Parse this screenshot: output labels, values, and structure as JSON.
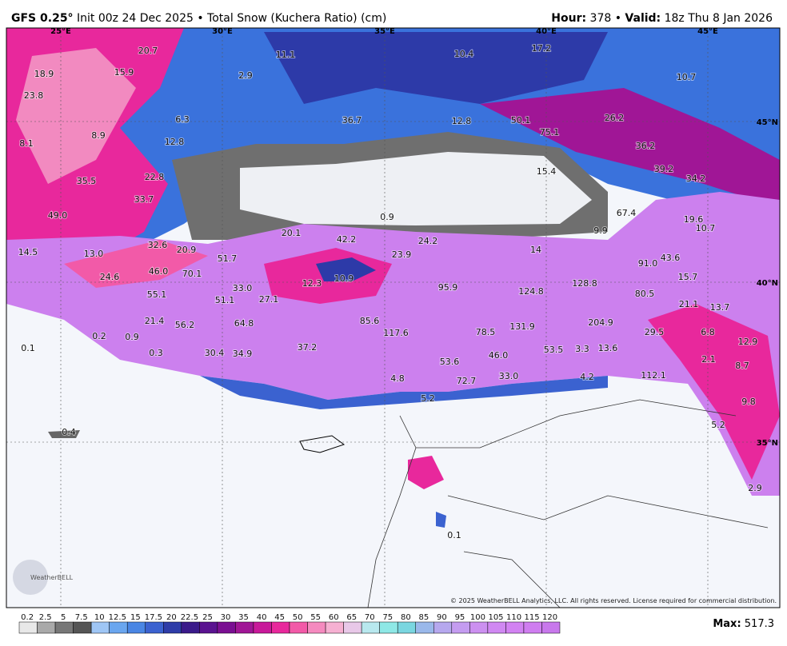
{
  "header": {
    "model": "GFS 0.25°",
    "description": "Init 00z 24 Dec 2025 • Total Snow (Kuchera Ratio) (cm)",
    "hour_label": "Hour:",
    "hour": "378 •",
    "valid_label": "Valid:",
    "valid": "18z Thu 8 Jan 2026"
  },
  "map": {
    "lon_labels": [
      "25°E",
      "30°E",
      "35°E",
      "40°E",
      "45°E"
    ],
    "lat_labels": [
      "45°N",
      "40°N",
      "35°N"
    ],
    "point_labels": [
      "20.7",
      "18.9",
      "15.9",
      "23.8",
      "11.1",
      "2.9",
      "10.4",
      "17.2",
      "10.7",
      "6.3",
      "36.7",
      "12.8",
      "50.1",
      "26.2",
      "8.1",
      "8.9",
      "12.8",
      "75.1",
      "36.2",
      "39.2",
      "34.2",
      "22.8",
      "35.5",
      "33.7",
      "15.4",
      "49.0",
      "0.9",
      "67.4",
      "19.6",
      "10.7",
      "20.1",
      "42.2",
      "24.2",
      "9.9",
      "32.6",
      "20.9",
      "14.5",
      "13.0",
      "51.7",
      "23.9",
      "14",
      "91.0",
      "43.6",
      "46.0",
      "70.1",
      "24.6",
      "10.9",
      "12.3",
      "15.7",
      "33.0",
      "55.1",
      "95.9",
      "124.8",
      "128.8",
      "80.5",
      "51.1",
      "27.1",
      "21.1",
      "13.7",
      "21.4",
      "56.2",
      "64.8",
      "85.6",
      "131.9",
      "204.9",
      "0.2",
      "0.9",
      "0.1",
      "117.6",
      "78.5",
      "29.5",
      "6.8",
      "12.9",
      "0.3",
      "30.4",
      "34.9",
      "37.2",
      "46.0",
      "53.5",
      "3.3",
      "13.6",
      "2.1",
      "53.6",
      "8.7",
      "33.0",
      "4.2",
      "112.1",
      "4.8",
      "72.7",
      "9.8",
      "5.2",
      "5.2",
      "0.4",
      "2.9",
      "0.1"
    ],
    "logo": "WeatherBELL",
    "copyright": "© 2025 WeatherBELL Analytics, LLC. All rights reserved. License required for commercial distribution."
  },
  "colorbar": [
    {
      "label": "0.2",
      "color": "#e8e8e8"
    },
    {
      "label": "2.5",
      "color": "#a9a9a9"
    },
    {
      "label": "5",
      "color": "#777777"
    },
    {
      "label": "7.5",
      "color": "#555555"
    },
    {
      "label": "10",
      "color": "#9fc6f5"
    },
    {
      "label": "12.5",
      "color": "#6aa6ef"
    },
    {
      "label": "15",
      "color": "#4a86e4"
    },
    {
      "label": "17.5",
      "color": "#3b62d0"
    },
    {
      "label": "20",
      "color": "#2e3ca8"
    },
    {
      "label": "22.5",
      "color": "#3a1a8a"
    },
    {
      "label": "25",
      "color": "#5a1390"
    },
    {
      "label": "30",
      "color": "#7a0f92"
    },
    {
      "label": "35",
      "color": "#a01696"
    },
    {
      "label": "40",
      "color": "#c8199a"
    },
    {
      "label": "45",
      "color": "#e8289c"
    },
    {
      "label": "50",
      "color": "#f25aa8"
    },
    {
      "label": "55",
      "color": "#f58abf"
    },
    {
      "label": "60",
      "color": "#f6b0d2"
    },
    {
      "label": "65",
      "color": "#e8c8e8"
    },
    {
      "label": "70",
      "color": "#b8e8ee"
    },
    {
      "label": "75",
      "color": "#8ee8e6"
    },
    {
      "label": "80",
      "color": "#7ad6e0"
    },
    {
      "label": "85",
      "color": "#9ab8ea"
    },
    {
      "label": "90",
      "color": "#b6a8ee"
    },
    {
      "label": "95",
      "color": "#c49cf0"
    },
    {
      "label": "100",
      "color": "#cc90f0"
    },
    {
      "label": "105",
      "color": "#d088f2"
    },
    {
      "label": "110",
      "color": "#d282f2"
    },
    {
      "label": "115",
      "color": "#cf7df0"
    },
    {
      "label": "120",
      "color": "#c878ec"
    }
  ],
  "max": {
    "label": "Max:",
    "value": "517.3"
  }
}
